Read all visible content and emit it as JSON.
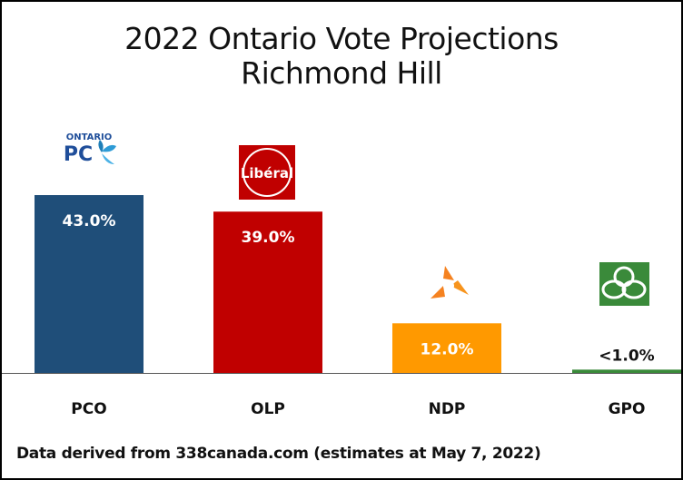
{
  "chart_data": {
    "type": "bar",
    "title": "2022 Ontario Vote Projections",
    "subtitle": "Richmond Hill",
    "categories": [
      "PCO",
      "OLP",
      "NDP",
      "GPO"
    ],
    "values": [
      43.0,
      39.0,
      12.0,
      0.8
    ],
    "data_labels": [
      "43.0%",
      "39.0%",
      "12.0%",
      "<1.0%"
    ],
    "colors": [
      "#1F4E79",
      "#C00000",
      "#FF9900",
      "#3A8A3A"
    ],
    "label_colors": [
      "#ffffff",
      "#ffffff",
      "#ffffff",
      "#111111"
    ],
    "logos": [
      "ontario-pc-logo",
      "ontario-liberal-logo",
      "ontario-ndp-logo",
      "ontario-green-logo"
    ],
    "ylim": [
      0,
      60
    ],
    "grid": false,
    "legend": "none"
  },
  "logo_text": {
    "pc_top": "ONTARIO",
    "pc_main": "PC",
    "liberal": "Libéral"
  },
  "footer": "Data derived from 338canada.com (estimates at May 7, 2022)"
}
